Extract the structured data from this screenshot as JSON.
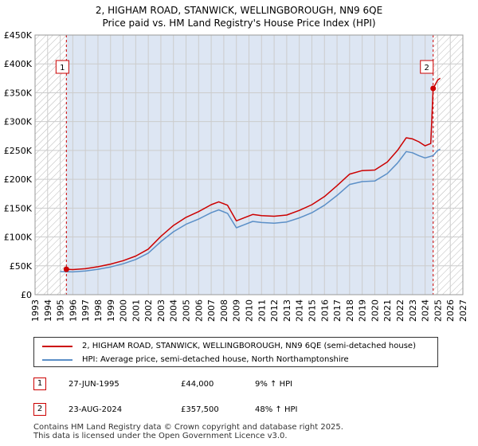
{
  "chart_data": {
    "type": "line",
    "title": "2, HIGHAM ROAD, STANWICK, WELLINGBOROUGH, NN9 6QE",
    "subtitle": "Price paid vs. HM Land Registry's House Price Index (HPI)",
    "xlim": [
      1993,
      2027
    ],
    "ylim": [
      0,
      450000
    ],
    "x_ticks": [
      1993,
      1994,
      1995,
      1996,
      1997,
      1998,
      1999,
      2000,
      2001,
      2002,
      2003,
      2004,
      2005,
      2006,
      2007,
      2008,
      2009,
      2010,
      2011,
      2012,
      2013,
      2014,
      2015,
      2016,
      2017,
      2018,
      2019,
      2020,
      2021,
      2022,
      2023,
      2024,
      2025,
      2026,
      2027
    ],
    "y_ticks": [
      0,
      50000,
      100000,
      150000,
      200000,
      250000,
      300000,
      350000,
      400000,
      450000
    ],
    "y_tick_labels": [
      "£0",
      "£50K",
      "£100K",
      "£150K",
      "£200K",
      "£250K",
      "£300K",
      "£350K",
      "£400K",
      "£450K"
    ],
    "hatch_regions": [
      [
        1993,
        1995.49
      ],
      [
        2024.64,
        2027
      ]
    ],
    "shaded_region": [
      1995.49,
      2024.64
    ],
    "series": [
      {
        "name": "2, HIGHAM ROAD, STANWICK, WELLINGBOROUGH, NN9 6QE (semi-detached house)",
        "color": "#cc0000",
        "points": [
          [
            1995.49,
            44000
          ],
          [
            1996.0,
            43500
          ],
          [
            1997.0,
            45000
          ],
          [
            1998.0,
            48500
          ],
          [
            1999.0,
            53000
          ],
          [
            2000.0,
            59000
          ],
          [
            2001.0,
            67000
          ],
          [
            2002.0,
            79000
          ],
          [
            2003.0,
            101000
          ],
          [
            2004.0,
            120000
          ],
          [
            2005.0,
            134000
          ],
          [
            2006.0,
            144000
          ],
          [
            2007.0,
            156000
          ],
          [
            2007.6,
            161000
          ],
          [
            2008.3,
            155000
          ],
          [
            2009.0,
            128000
          ],
          [
            2009.6,
            133000
          ],
          [
            2010.3,
            139000
          ],
          [
            2011.0,
            137000
          ],
          [
            2012.0,
            136000
          ],
          [
            2013.0,
            138000
          ],
          [
            2014.0,
            146000
          ],
          [
            2015.0,
            156000
          ],
          [
            2016.0,
            170000
          ],
          [
            2017.0,
            189000
          ],
          [
            2018.0,
            209000
          ],
          [
            2019.0,
            215000
          ],
          [
            2020.0,
            216000
          ],
          [
            2021.0,
            230000
          ],
          [
            2021.8,
            250000
          ],
          [
            2022.5,
            272000
          ],
          [
            2023.0,
            270000
          ],
          [
            2023.5,
            265000
          ],
          [
            2024.0,
            258000
          ],
          [
            2024.45,
            262000
          ],
          [
            2024.64,
            357500
          ],
          [
            2025.0,
            372000
          ],
          [
            2025.2,
            375000
          ]
        ]
      },
      {
        "name": "HPI: Average price, semi-detached house, North Northamptonshire",
        "color": "#5b8fc7",
        "points": [
          [
            1995.0,
            40000
          ],
          [
            1996.0,
            39500
          ],
          [
            1997.0,
            41000
          ],
          [
            1998.0,
            44000
          ],
          [
            1999.0,
            48000
          ],
          [
            2000.0,
            53500
          ],
          [
            2001.0,
            61000
          ],
          [
            2002.0,
            72000
          ],
          [
            2003.0,
            92000
          ],
          [
            2004.0,
            109000
          ],
          [
            2005.0,
            122000
          ],
          [
            2006.0,
            131000
          ],
          [
            2007.0,
            142000
          ],
          [
            2007.6,
            147000
          ],
          [
            2008.3,
            141000
          ],
          [
            2009.0,
            116000
          ],
          [
            2009.6,
            121000
          ],
          [
            2010.3,
            127000
          ],
          [
            2011.0,
            125000
          ],
          [
            2012.0,
            124000
          ],
          [
            2013.0,
            126000
          ],
          [
            2014.0,
            133000
          ],
          [
            2015.0,
            142000
          ],
          [
            2016.0,
            155000
          ],
          [
            2017.0,
            172000
          ],
          [
            2018.0,
            191000
          ],
          [
            2019.0,
            196000
          ],
          [
            2020.0,
            197000
          ],
          [
            2021.0,
            210000
          ],
          [
            2021.8,
            228000
          ],
          [
            2022.5,
            248000
          ],
          [
            2023.0,
            246000
          ],
          [
            2023.5,
            241000
          ],
          [
            2024.0,
            237000
          ],
          [
            2024.64,
            241000
          ],
          [
            2025.0,
            250000
          ],
          [
            2025.2,
            252000
          ]
        ]
      }
    ],
    "markers": [
      {
        "label": "1",
        "x": 1995.49,
        "y": 44000
      },
      {
        "label": "2",
        "x": 2024.64,
        "y": 357500
      }
    ]
  },
  "legend": {
    "property_label": "2, HIGHAM ROAD, STANWICK, WELLINGBOROUGH, NN9 6QE (semi-detached house)",
    "hpi_label": "HPI: Average price, semi-detached house, North Northamptonshire"
  },
  "transactions": [
    {
      "num": "1",
      "date": "27-JUN-1995",
      "price": "£44,000",
      "hpi": "9% ↑ HPI"
    },
    {
      "num": "2",
      "date": "23-AUG-2024",
      "price": "£357,500",
      "hpi": "48% ↑ HPI"
    }
  ],
  "footer": "Contains HM Land Registry data © Crown copyright and database right 2025.\nThis data is licensed under the Open Government Licence v3.0.",
  "colors": {
    "property": "#cc0000",
    "hpi": "#5b8fc7",
    "shade": "#dde6f3",
    "grid": "#cccccc"
  }
}
